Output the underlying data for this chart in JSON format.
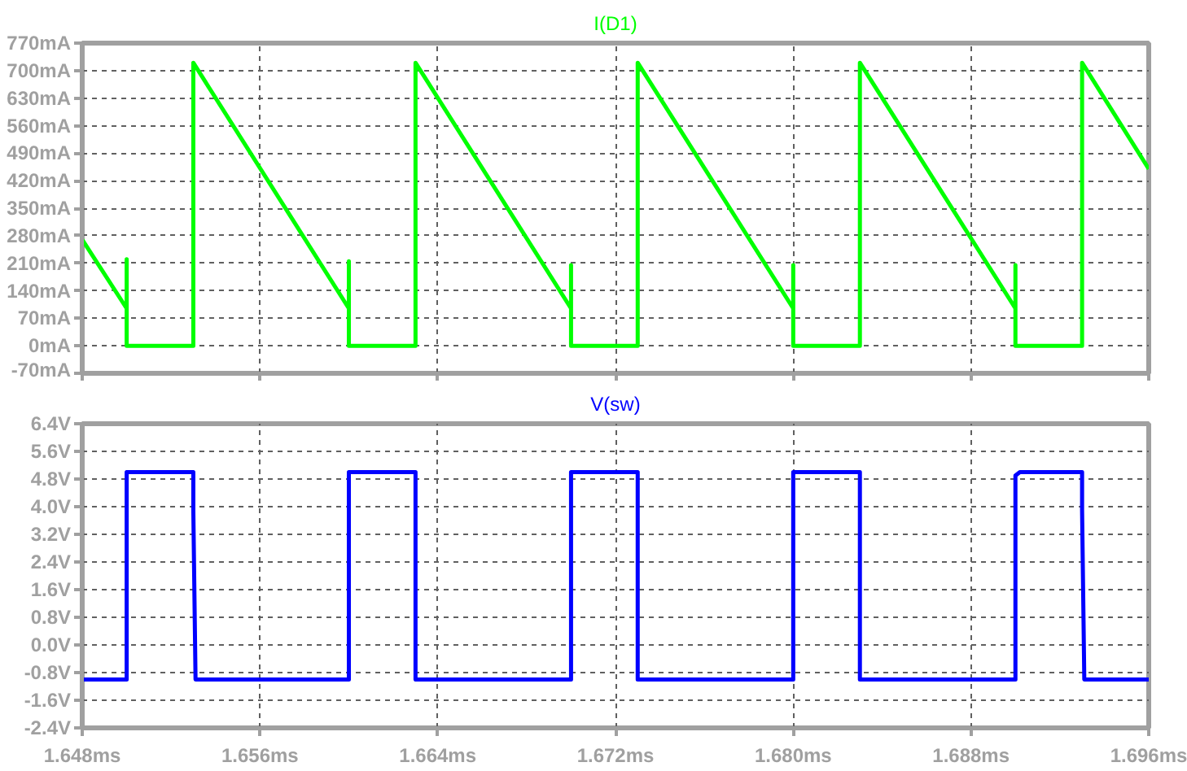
{
  "chart_data": [
    {
      "type": "line",
      "title": "I(D1)",
      "xlim": [
        1.648,
        1.696
      ],
      "xticks": [
        {
          "value": 1.648,
          "label": null
        },
        {
          "value": 1.656,
          "label": null
        },
        {
          "value": 1.664,
          "label": null
        },
        {
          "value": 1.672,
          "label": null
        },
        {
          "value": 1.68,
          "label": null
        },
        {
          "value": 1.688,
          "label": null
        },
        {
          "value": 1.696,
          "label": null
        }
      ],
      "ylim": [
        -70,
        770
      ],
      "yticks": [
        {
          "value": -70,
          "label": "-70mA"
        },
        {
          "value": 0,
          "label": "0mA"
        },
        {
          "value": 70,
          "label": "70mA"
        },
        {
          "value": 140,
          "label": "140mA"
        },
        {
          "value": 210,
          "label": "210mA"
        },
        {
          "value": 280,
          "label": "280mA"
        },
        {
          "value": 350,
          "label": "350mA"
        },
        {
          "value": 420,
          "label": "420mA"
        },
        {
          "value": 490,
          "label": "490mA"
        },
        {
          "value": 560,
          "label": "560mA"
        },
        {
          "value": 630,
          "label": "630mA"
        },
        {
          "value": 700,
          "label": "700mA"
        },
        {
          "value": 770,
          "label": "770mA"
        }
      ],
      "grid": true,
      "tick_labels": "y",
      "series": [
        {
          "color": "#00ff00",
          "x": [
            1.648,
            1.65,
            1.65,
            1.65,
            1.653,
            1.653,
            1.66,
            1.66,
            1.66,
            1.663,
            1.663,
            1.67,
            1.67,
            1.67,
            1.673,
            1.673,
            1.68,
            1.68,
            1.68,
            1.683,
            1.683,
            1.69,
            1.69,
            1.69,
            1.693,
            1.693,
            1.696
          ],
          "values": [
            270,
            95,
            220,
            0,
            0,
            720,
            95,
            215,
            0,
            0,
            720,
            95,
            205,
            0,
            0,
            720,
            95,
            205,
            0,
            0,
            720,
            95,
            205,
            0,
            0,
            720,
            450
          ]
        }
      ]
    },
    {
      "type": "line",
      "title": "V(sw)",
      "xlim": [
        1.648,
        1.696
      ],
      "xticks": [
        {
          "value": 1.648,
          "label": "1.648ms"
        },
        {
          "value": 1.656,
          "label": "1.656ms"
        },
        {
          "value": 1.664,
          "label": "1.664ms"
        },
        {
          "value": 1.672,
          "label": "1.672ms"
        },
        {
          "value": 1.68,
          "label": "1.680ms"
        },
        {
          "value": 1.688,
          "label": "1.688ms"
        },
        {
          "value": 1.696,
          "label": "1.696ms"
        }
      ],
      "ylim": [
        -2.4,
        6.4
      ],
      "yticks": [
        {
          "value": -2.4,
          "label": "-2.4V"
        },
        {
          "value": -1.6,
          "label": "-1.6V"
        },
        {
          "value": -0.8,
          "label": "-0.8V"
        },
        {
          "value": 0,
          "label": "0.0V"
        },
        {
          "value": 0.8,
          "label": "0.8V"
        },
        {
          "value": 1.6,
          "label": "1.6V"
        },
        {
          "value": 2.4,
          "label": "2.4V"
        },
        {
          "value": 3.2,
          "label": "3.2V"
        },
        {
          "value": 4.0,
          "label": "4.0V"
        },
        {
          "value": 4.8,
          "label": "4.8V"
        },
        {
          "value": 5.6,
          "label": "5.6V"
        },
        {
          "value": 6.4,
          "label": "6.4V"
        }
      ],
      "grid": true,
      "series": [
        {
          "color": "#0000ff",
          "x": [
            1.648,
            1.65,
            1.65,
            1.653,
            1.653,
            1.6531,
            1.66,
            1.66,
            1.663,
            1.663,
            1.67,
            1.67,
            1.673,
            1.673,
            1.68,
            1.68,
            1.683,
            1.683,
            1.69,
            1.69,
            1.6902,
            1.693,
            1.693,
            1.6931,
            1.696
          ],
          "values": [
            -1,
            -1,
            5,
            5,
            3.9,
            -1,
            -1,
            5,
            5,
            -1,
            -1,
            5,
            5,
            -1,
            -1,
            5,
            5,
            -1,
            -1,
            4.9,
            5,
            5,
            3.9,
            -1,
            -1
          ]
        }
      ]
    }
  ]
}
